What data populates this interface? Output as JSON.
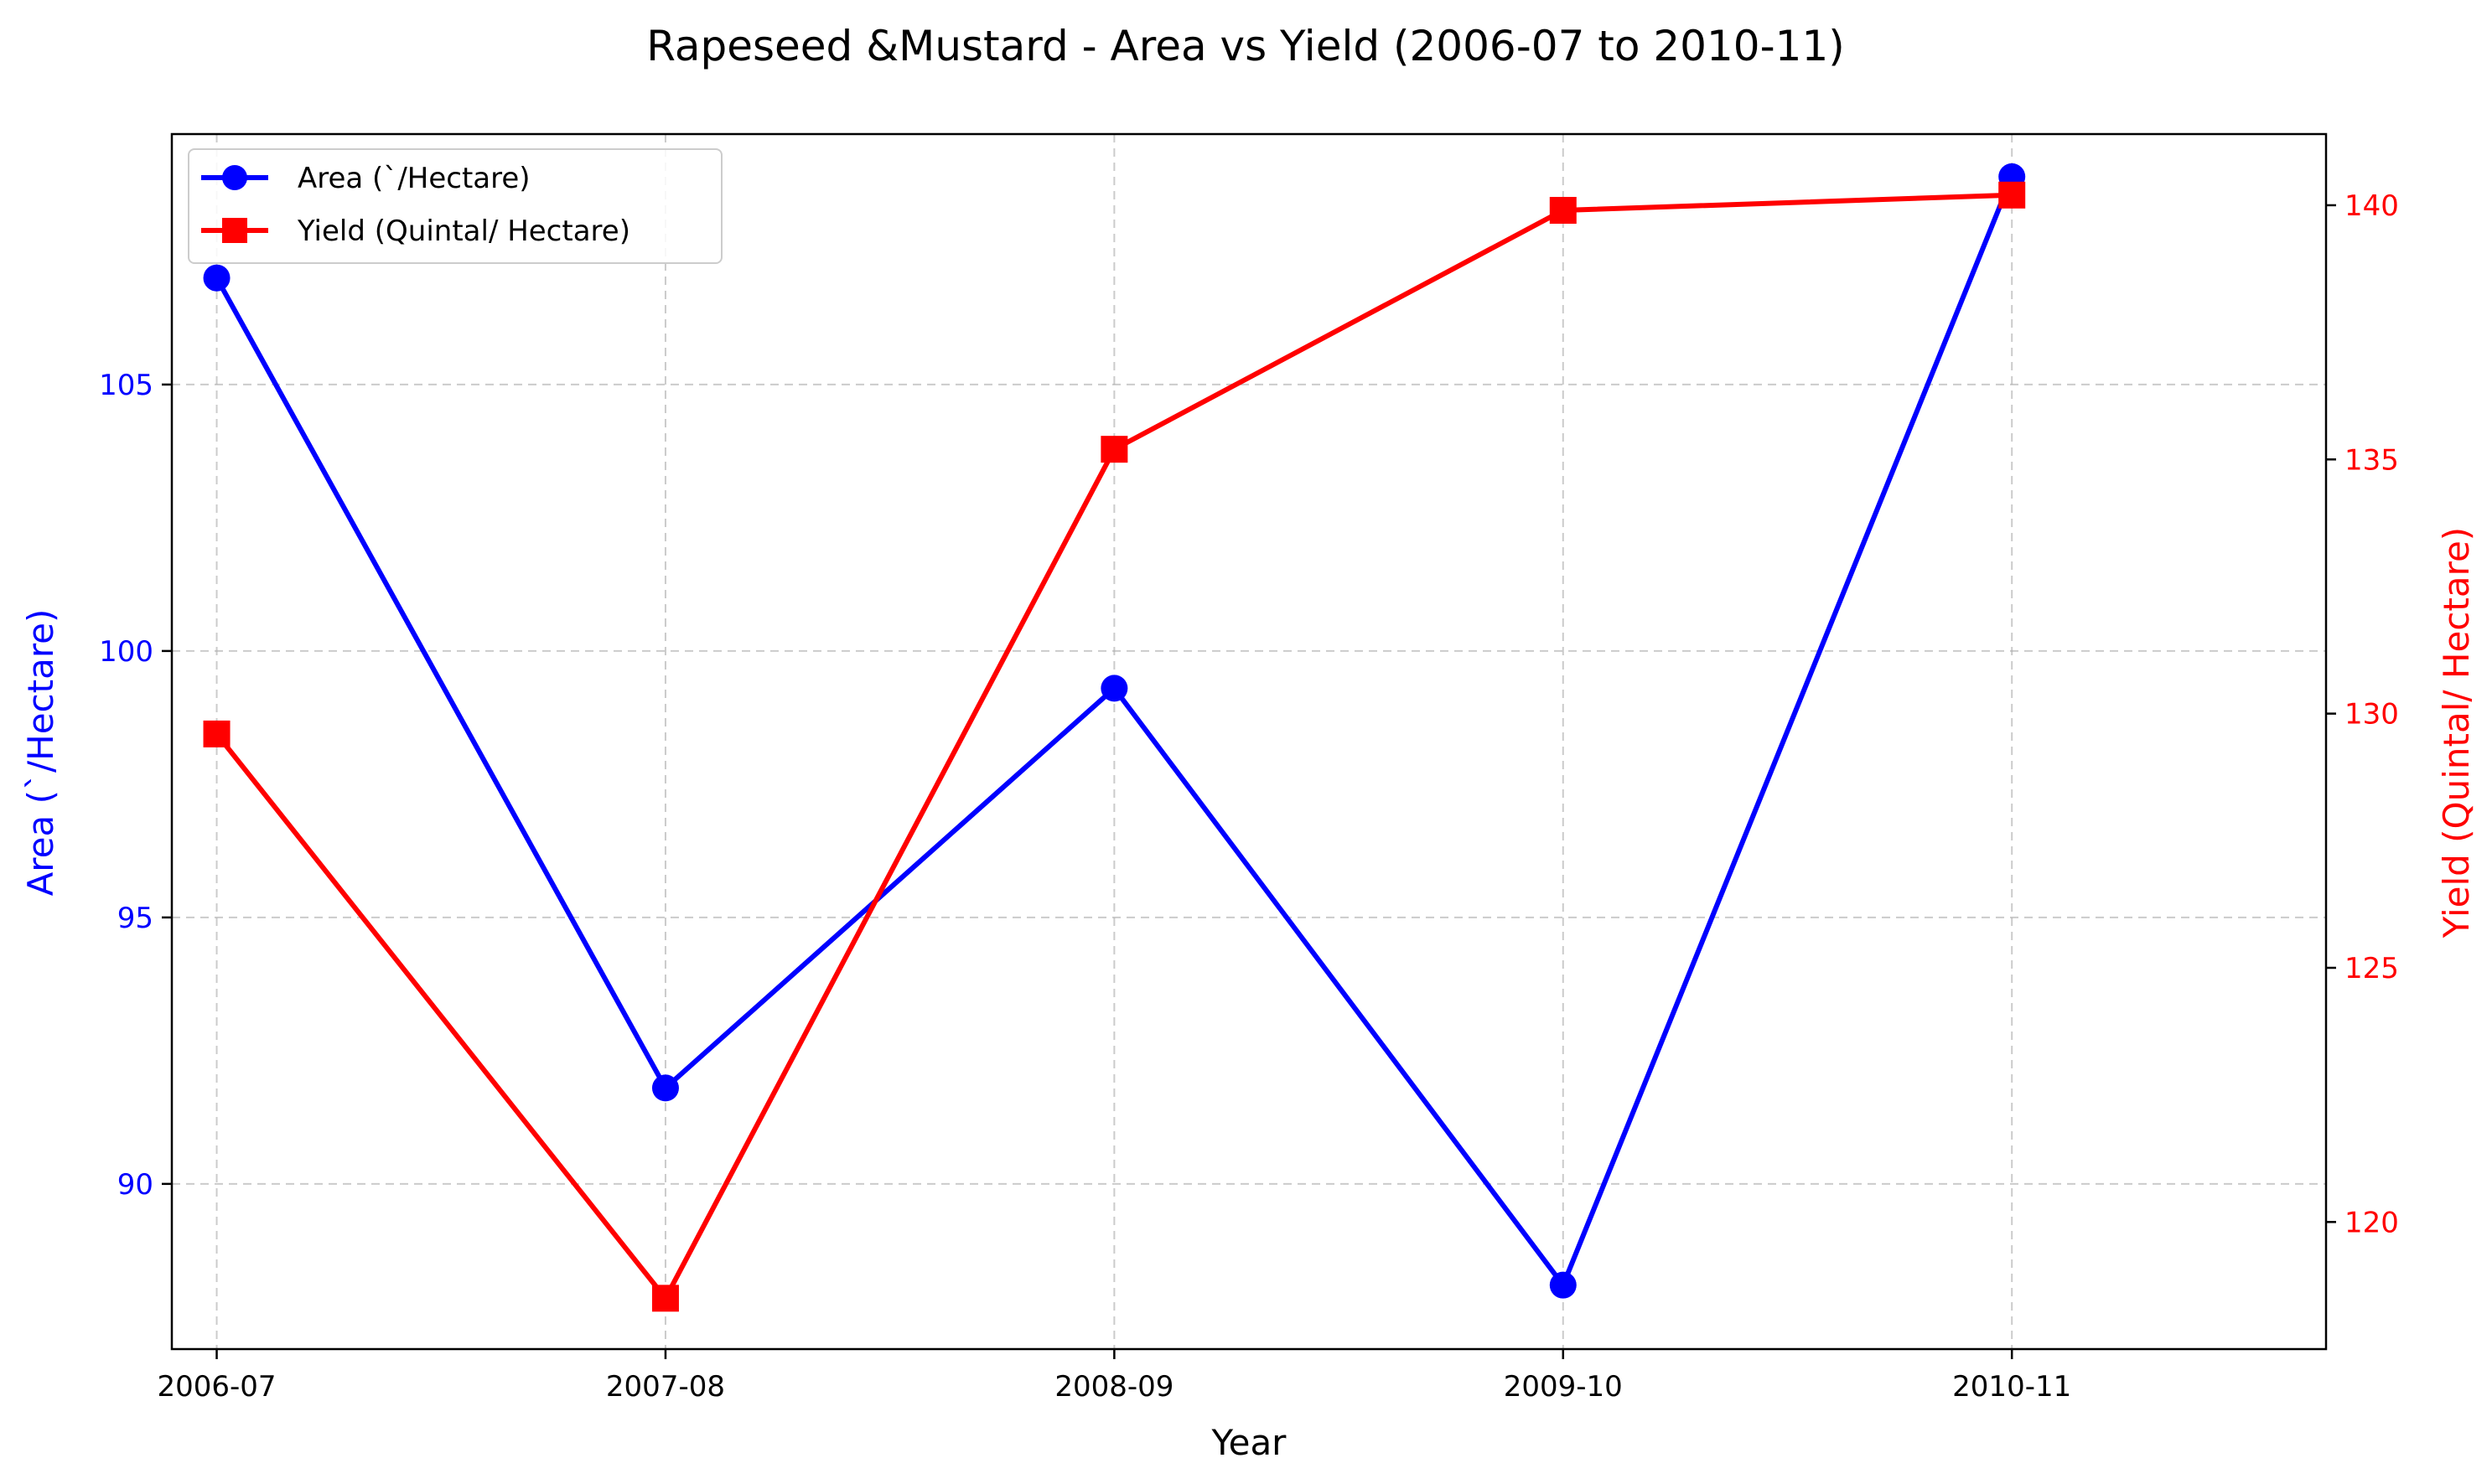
{
  "chart_data": {
    "type": "line",
    "title": "Rapeseed &Mustard - Area vs Yield (2006-07 to 2010-11)",
    "xlabel": "Year",
    "categories": [
      "2006-07",
      "2007-08",
      "2008-09",
      "2009-10",
      "2010-11"
    ],
    "y_left": {
      "label": "Area (`/Hectare)",
      "ticks": [
        90,
        95,
        100,
        105
      ],
      "ylim": [
        86.9,
        109.7
      ],
      "color": "#0000ff"
    },
    "y_right": {
      "label": "Yield (Quintal/ Hectare)",
      "ticks": [
        120,
        125,
        130,
        135,
        140
      ],
      "ylim": [
        117.5,
        141.4
      ],
      "color": "#ff0000"
    },
    "series": [
      {
        "name": "Area (`/Hectare)",
        "axis": "left",
        "color": "#0000ff",
        "marker": "circle",
        "values": [
          107.0,
          91.8,
          99.3,
          88.1,
          108.9
        ]
      },
      {
        "name": "Yield (Quintal/ Hectare)",
        "axis": "right",
        "color": "#ff0000",
        "marker": "square",
        "values": [
          129.6,
          118.5,
          135.2,
          139.9,
          140.2
        ]
      }
    ],
    "grid": true,
    "legend_position": "top-left"
  }
}
